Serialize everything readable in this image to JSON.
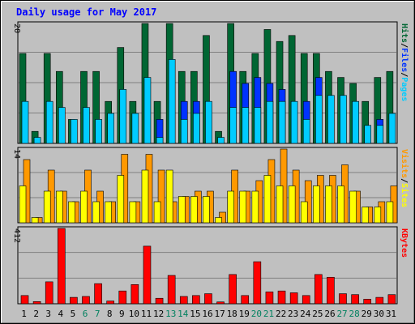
{
  "chart_data": {
    "type": "bar",
    "title": "Daily usage for May 2017",
    "categories": [
      "1",
      "2",
      "3",
      "4",
      "5",
      "6",
      "7",
      "8",
      "9",
      "10",
      "11",
      "12",
      "13",
      "14",
      "15",
      "16",
      "17",
      "18",
      "19",
      "20",
      "21",
      "22",
      "23",
      "24",
      "25",
      "26",
      "27",
      "28",
      "29",
      "30",
      "31"
    ],
    "weekend_days": [
      6,
      7,
      13,
      14,
      20,
      21,
      27,
      28
    ],
    "panels": [
      {
        "id": "top",
        "ymax_label": "20",
        "right_labels": [
          "Pages",
          "/",
          "Files",
          "/",
          "Hits"
        ],
        "ylim": [
          0,
          20
        ],
        "series": [
          {
            "name": "Hits",
            "color": "#006633",
            "values": [
              15,
              2,
              15,
              12,
              4,
              12,
              12,
              7,
              16,
              7,
              20,
              7,
              20,
              12,
              12,
              18,
              2,
              20,
              12,
              15,
              19,
              17,
              18,
              15,
              15,
              12,
              11,
              10,
              7,
              11,
              12
            ]
          },
          {
            "name": "Files",
            "color": "#0033ff",
            "values": [
              0,
              0,
              0,
              0,
              0,
              0,
              0,
              0,
              0,
              0,
              0,
              4,
              0,
              7,
              7,
              0,
              0,
              12,
              10,
              11,
              10,
              9,
              0,
              7,
              11,
              0,
              0,
              0,
              0,
              4,
              0
            ]
          },
          {
            "name": "Pages",
            "color": "#00ccff",
            "values": [
              7,
              1,
              7,
              6,
              4,
              6,
              4,
              5,
              9,
              5,
              11,
              1,
              14,
              4,
              5,
              7,
              1,
              6,
              6,
              6,
              7,
              7,
              7,
              4,
              8,
              8,
              8,
              7,
              3,
              3,
              5
            ]
          }
        ]
      },
      {
        "id": "middle",
        "ymax_label": "14",
        "right_labels": [
          "Sites",
          "/",
          "Visits"
        ],
        "ylim": [
          0,
          14
        ],
        "series": [
          {
            "name": "Visits",
            "color": "#ff9900",
            "values": [
              12,
              1,
              10,
              6,
              4,
              10,
              6,
              4,
              13,
              4,
              13,
              10,
              4,
              5,
              6,
              6,
              2,
              10,
              6,
              8,
              12,
              14,
              10,
              8,
              9,
              9,
              11,
              6,
              3,
              4,
              7
            ]
          },
          {
            "name": "Sites",
            "color": "#ffff00",
            "values": [
              7,
              1,
              6,
              6,
              4,
              6,
              4,
              4,
              9,
              4,
              10,
              4,
              10,
              5,
              5,
              5,
              1,
              6,
              6,
              6,
              9,
              7,
              7,
              4,
              7,
              7,
              7,
              6,
              3,
              3,
              4
            ]
          }
        ]
      },
      {
        "id": "bottom",
        "ymax_label": "412",
        "right_labels": [
          "KBytes"
        ],
        "ylim": [
          0,
          412
        ],
        "series": [
          {
            "name": "KBytes",
            "color": "#ff0000",
            "values": [
              45,
              12,
              120,
              412,
              35,
              40,
              110,
              15,
              70,
              105,
              315,
              30,
              155,
              40,
              45,
              55,
              10,
              160,
              45,
              230,
              65,
              70,
              60,
              45,
              160,
              145,
              55,
              50,
              25,
              35,
              50
            ]
          }
        ]
      }
    ]
  }
}
